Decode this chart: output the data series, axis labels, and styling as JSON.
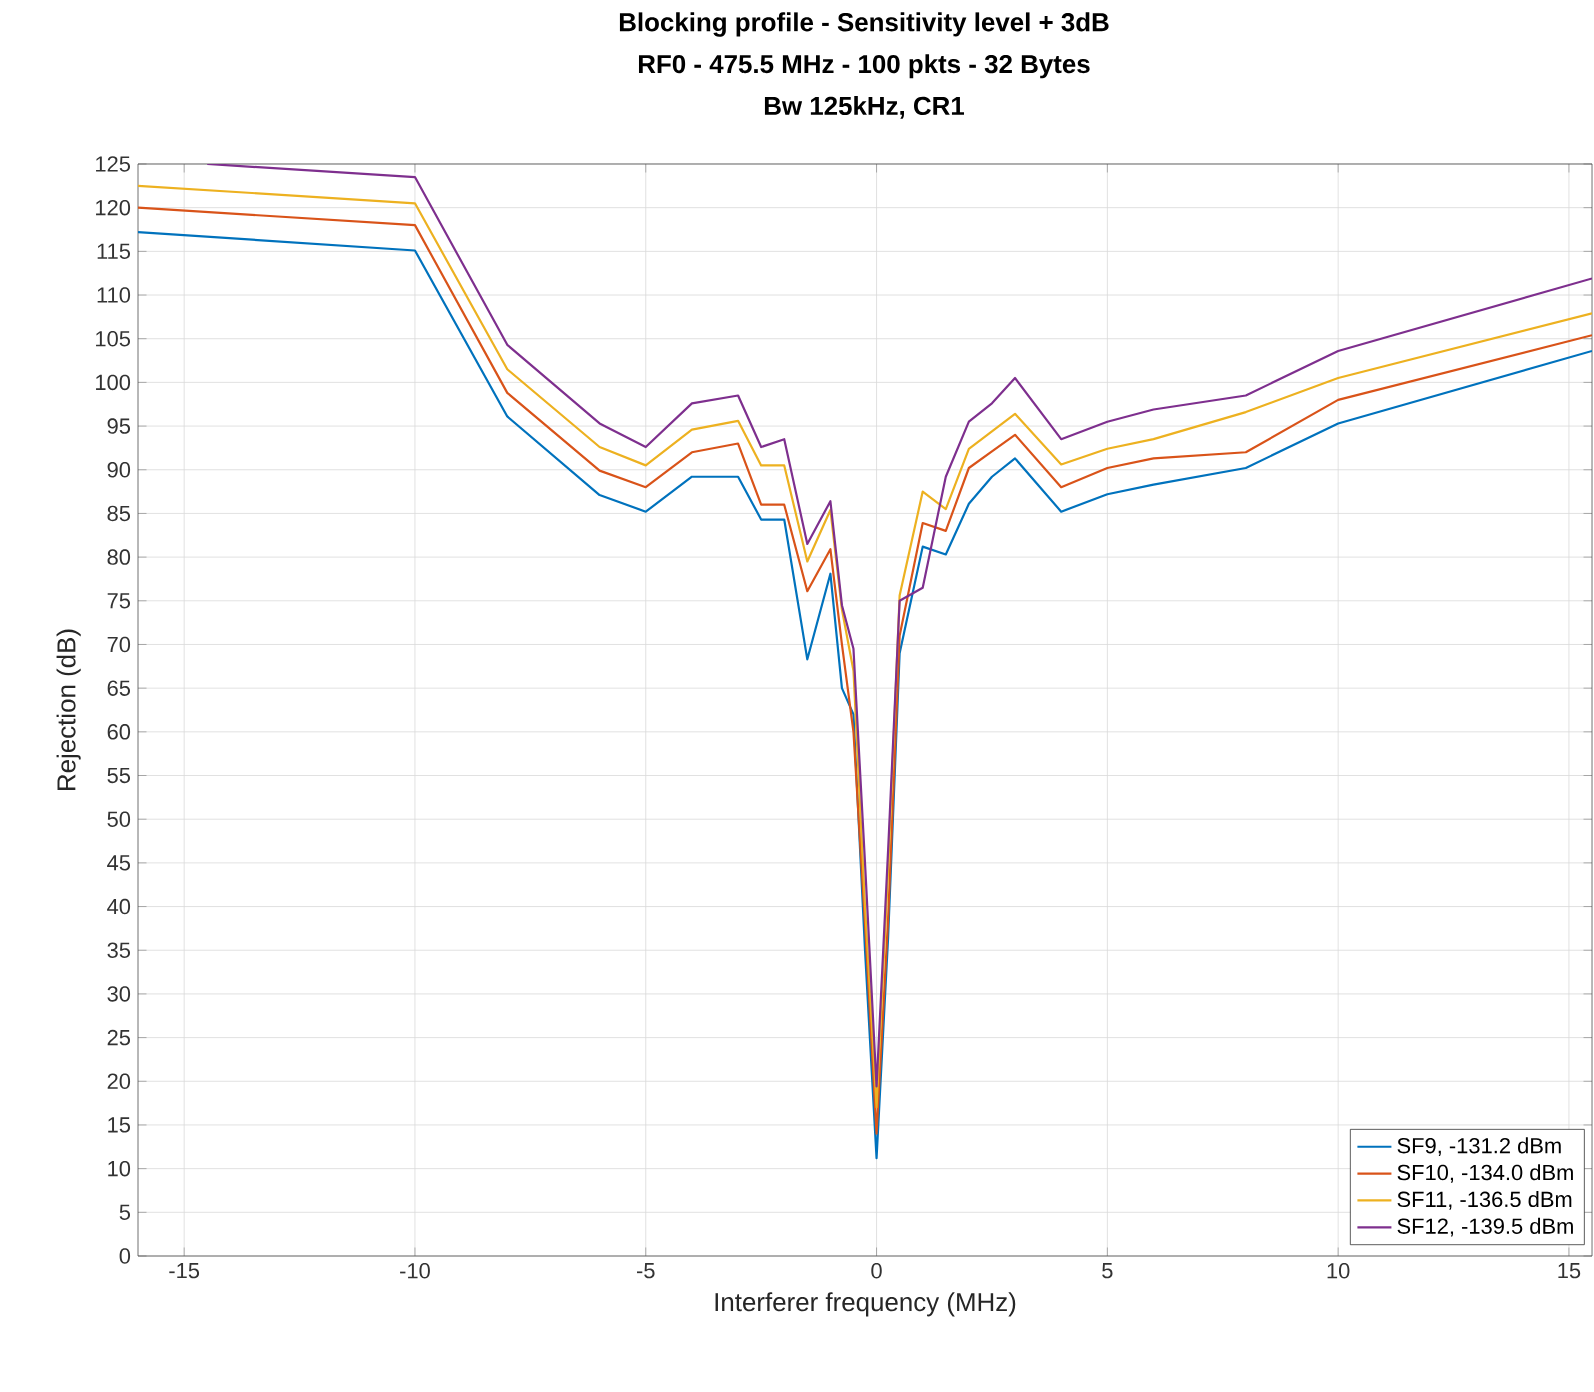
{
  "chart_data": {
    "type": "line",
    "title": "Blocking profile - Sensitivity level + 3dB",
    "subtitle": "RF0 - 475.5 MHz - 100 pkts - 32 Bytes\nBw 125kHz, CR1",
    "xlabel": "Interferer frequency (MHz)",
    "ylabel": "Rejection (dB)",
    "x": [
      -16,
      -10,
      -8,
      -6,
      -5,
      -4,
      -3,
      -2.5,
      -2,
      -1.5,
      -1,
      -0.75,
      -0.5,
      -0.25,
      0,
      0.25,
      0.5,
      1,
      1.5,
      2,
      2.5,
      3,
      4,
      5,
      6,
      8,
      10,
      15.5
    ],
    "series": [
      {
        "name": "SF9,  -131.2 dBm",
        "color": "#0072bd",
        "values": [
          117.2,
          115.1,
          96.1,
          87.1,
          85.2,
          89.2,
          89.2,
          84.3,
          84.3,
          68.3,
          78.1,
          65,
          62,
          35,
          11.2,
          36.4,
          69,
          81.2,
          80.3,
          86.1,
          89.2,
          91.3,
          85.2,
          87.2,
          88.3,
          90.2,
          95.3,
          103.6
        ]
      },
      {
        "name": "SF10,  -134.0 dBm",
        "color": "#d95319",
        "values": [
          120,
          118,
          98.8,
          89.9,
          88,
          92,
          93,
          86,
          86,
          76.1,
          80.9,
          70,
          60,
          38,
          14,
          38.5,
          71,
          83.9,
          83,
          90.2,
          92.1,
          94,
          88,
          90.2,
          91.3,
          92,
          98,
          105.4
        ]
      },
      {
        "name": "SF11,  -136.5 dBm",
        "color": "#edb120",
        "values": [
          122.5,
          120.5,
          101.5,
          92.6,
          90.5,
          94.6,
          95.6,
          90.5,
          90.5,
          79.5,
          85.4,
          74,
          67,
          40,
          17,
          44,
          75.6,
          87.5,
          85.5,
          92.4,
          94.4,
          96.4,
          90.6,
          92.4,
          93.5,
          96.6,
          100.5,
          107.9
        ]
      },
      {
        "name": "SF12,  -139.5 dBm",
        "color": "#7e2f8e",
        "x": [
          -14.5,
          -10,
          -8,
          -6,
          -5,
          -4,
          -3,
          -2.5,
          -2,
          -1.5,
          -1,
          -0.75,
          -0.5,
          -0.25,
          0,
          0.25,
          0.5,
          1,
          1.5,
          2,
          2.5,
          3,
          4,
          5,
          6,
          8,
          10,
          15.5
        ],
        "values": [
          125,
          123.5,
          104.3,
          95.3,
          92.6,
          97.6,
          98.5,
          92.6,
          93.5,
          81.5,
          86.4,
          74.5,
          69.5,
          45,
          19.4,
          46.4,
          75,
          76.5,
          89.2,
          95.5,
          97.6,
          100.5,
          93.5,
          95.5,
          96.9,
          98.5,
          103.6,
          111.9
        ]
      }
    ],
    "xlim": [
      -16,
      15.5
    ],
    "ylim": [
      0,
      125
    ],
    "xticks": [
      -15,
      -10,
      -5,
      0,
      5,
      10,
      15
    ],
    "yticks": [
      0,
      5,
      10,
      15,
      20,
      25,
      30,
      35,
      40,
      45,
      50,
      55,
      60,
      65,
      70,
      75,
      80,
      85,
      90,
      95,
      100,
      105,
      110,
      115,
      120,
      125
    ],
    "grid": true,
    "legend": "bottom right",
    "marker": "none",
    "line_style": "solid"
  }
}
